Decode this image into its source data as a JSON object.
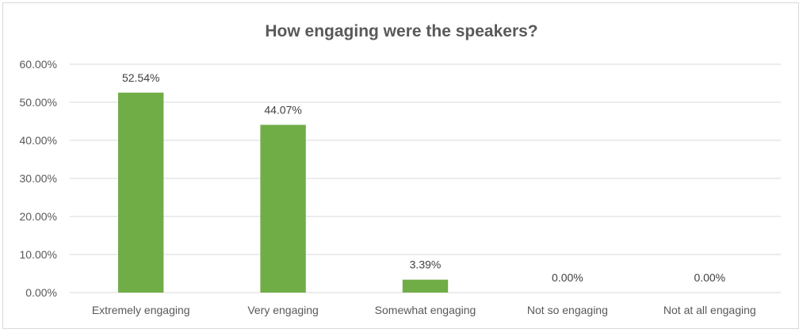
{
  "chart_data": {
    "type": "bar",
    "title": "How engaging were the speakers?",
    "xlabel": "",
    "ylabel": "",
    "categories": [
      "Extremely engaging",
      "Very engaging",
      "Somewhat engaging",
      "Not so engaging",
      "Not at all engaging"
    ],
    "values": [
      52.54,
      44.07,
      3.39,
      0.0,
      0.0
    ],
    "data_labels": [
      "52.54%",
      "44.07%",
      "3.39%",
      "0.00%",
      "0.00%"
    ],
    "ylim": [
      0,
      60
    ],
    "yticks": [
      0,
      10,
      20,
      30,
      40,
      50,
      60
    ],
    "ytick_labels": [
      "0.00%",
      "10.00%",
      "20.00%",
      "30.00%",
      "40.00%",
      "50.00%",
      "60.00%"
    ],
    "grid": true,
    "legend": "none",
    "colors": {
      "bar": "#70ad47",
      "grid": "#d9d9d9",
      "text": "#595959"
    }
  }
}
